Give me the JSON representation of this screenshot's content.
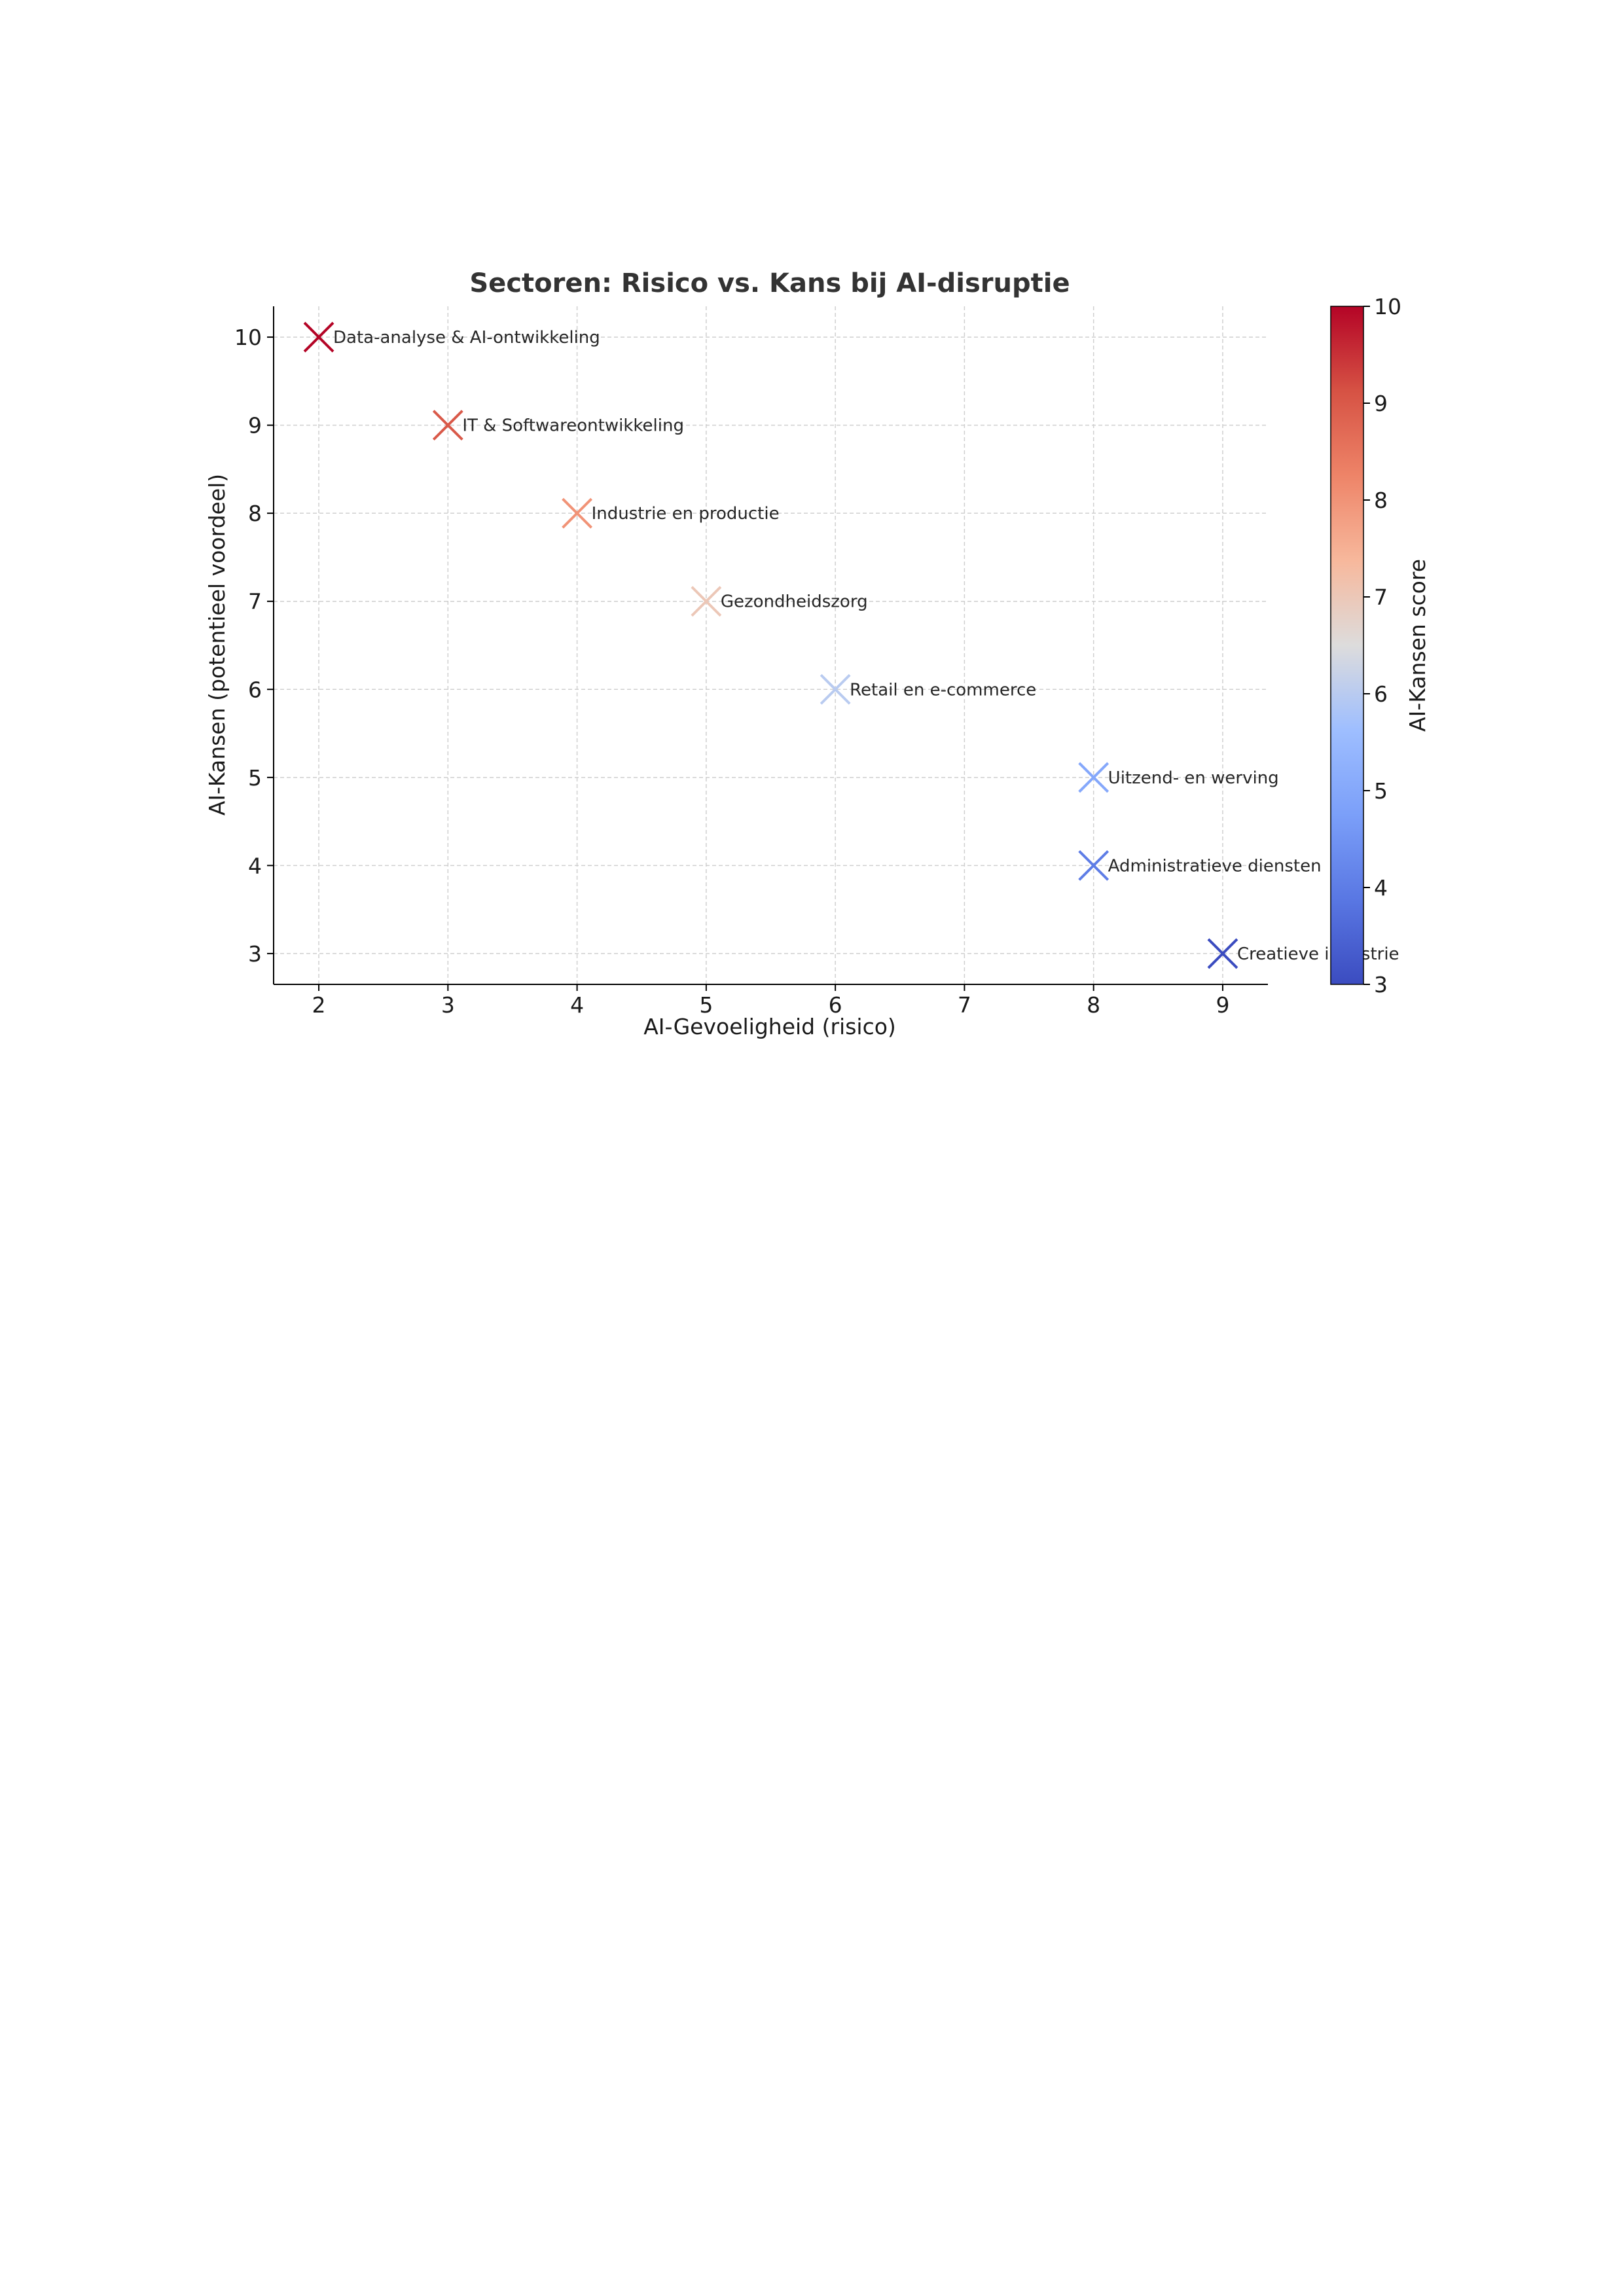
{
  "chart_data": {
    "type": "scatter",
    "title": "Sectoren: Risico vs. Kans bij AI-disruptie",
    "xlabel": "AI-Gevoeligheid (risico)",
    "ylabel": "AI-Kansen (potentieel voordeel)",
    "xlim": [
      1.65,
      9.35
    ],
    "ylim": [
      2.65,
      10.35
    ],
    "xticks": [
      2,
      3,
      4,
      5,
      6,
      7,
      8,
      9
    ],
    "yticks": [
      3,
      4,
      5,
      6,
      7,
      8,
      9,
      10
    ],
    "grid": true,
    "marker": "x",
    "points": [
      {
        "label": "Data-analyse & AI-ontwikkeling",
        "x": 2,
        "y": 10,
        "score": 10
      },
      {
        "label": "IT & Softwareontwikkeling",
        "x": 3,
        "y": 9,
        "score": 9
      },
      {
        "label": "Industrie en productie",
        "x": 4,
        "y": 8,
        "score": 8
      },
      {
        "label": "Gezondheidszorg",
        "x": 5,
        "y": 7,
        "score": 7
      },
      {
        "label": "Retail en e-commerce",
        "x": 6,
        "y": 6,
        "score": 6
      },
      {
        "label": "Uitzend- en werving",
        "x": 8,
        "y": 5,
        "score": 5
      },
      {
        "label": "Administratieve diensten",
        "x": 8,
        "y": 4,
        "score": 4
      },
      {
        "label": "Creatieve industrie",
        "x": 9,
        "y": 3,
        "score": 3
      }
    ],
    "colorbar": {
      "label": "AI-Kansen score",
      "colormap": "coolwarm",
      "range": [
        3,
        10
      ],
      "ticks": [
        3,
        4,
        5,
        6,
        7,
        8,
        9,
        10
      ]
    }
  }
}
